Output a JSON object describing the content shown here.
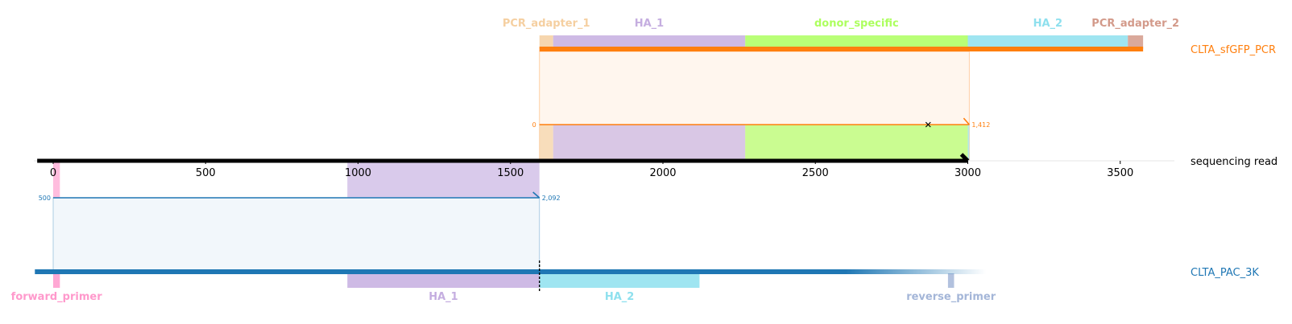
{
  "colors": {
    "top_read": "#ff7f0e",
    "bottom_read": "#1f77b4",
    "axis": "#000000",
    "pcr_adapter_1": "#f5cfa0",
    "ha_1": "#c5aee0",
    "donor_specific": "#adff5f",
    "ha_2": "#8ee0ee",
    "pcr_adapter_2": "#d39a8a",
    "forward_primer": "#ff99cc",
    "reverse_primer": "#a4b6d8"
  },
  "reads": {
    "top": {
      "name": "CLTA_sfGFP_PCR",
      "alignment_start_label": "0",
      "alignment_end_label": "1,412"
    },
    "middle": {
      "name": "sequencing read"
    },
    "bottom": {
      "name": "CLTA_PAC_3K",
      "alignment_start_label": "500",
      "alignment_end_label": "2,092"
    }
  },
  "axis": {
    "ticks": [
      {
        "value": 0,
        "label": "0"
      },
      {
        "value": 500,
        "label": "500"
      },
      {
        "value": 1000,
        "label": "1000"
      },
      {
        "value": 1500,
        "label": "1500"
      },
      {
        "value": 2000,
        "label": "2000"
      },
      {
        "value": 2500,
        "label": "2500"
      },
      {
        "value": 3000,
        "label": "3000"
      },
      {
        "value": 3500,
        "label": "3500"
      }
    ]
  },
  "top_features": [
    {
      "name": "PCR_adapter_1",
      "color": "#f5cfa0",
      "start": 1595,
      "end": 1640
    },
    {
      "name": "HA_1",
      "color": "#c5aee0",
      "start": 1640,
      "end": 2270
    },
    {
      "name": "donor_specific",
      "color": "#adff5f",
      "start": 2270,
      "end": 3000
    },
    {
      "name": "HA_2",
      "color": "#8ee0ee",
      "start": 3000,
      "end": 3525
    },
    {
      "name": "PCR_adapter_2",
      "color": "#d39a8a",
      "start": 3525,
      "end": 3575
    }
  ],
  "bottom_features": [
    {
      "name": "forward_primer",
      "color": "#ff99cc",
      "start": 0,
      "end": 22
    },
    {
      "name": "HA_1",
      "color": "#c5aee0",
      "start": 965,
      "end": 1595
    },
    {
      "name": "HA_2",
      "color": "#8ee0ee",
      "start": 1595,
      "end": 2120
    },
    {
      "name": "reverse_primer",
      "color": "#a4b6d8",
      "start": 2935,
      "end": 2955
    }
  ],
  "top_alignment": {
    "read_start": 1595,
    "read_end": 3005,
    "mismatch_at": 2870
  },
  "bottom_alignment": {
    "read_start": 0,
    "read_end": 1595
  },
  "middle_read": {
    "start": -55,
    "end": 3000
  },
  "top_reference": {
    "start": 1595,
    "end": 3575
  },
  "bottom_reference": {
    "start": -60,
    "end": 3060,
    "fade_start": 2600
  },
  "cut_site": 1595
}
